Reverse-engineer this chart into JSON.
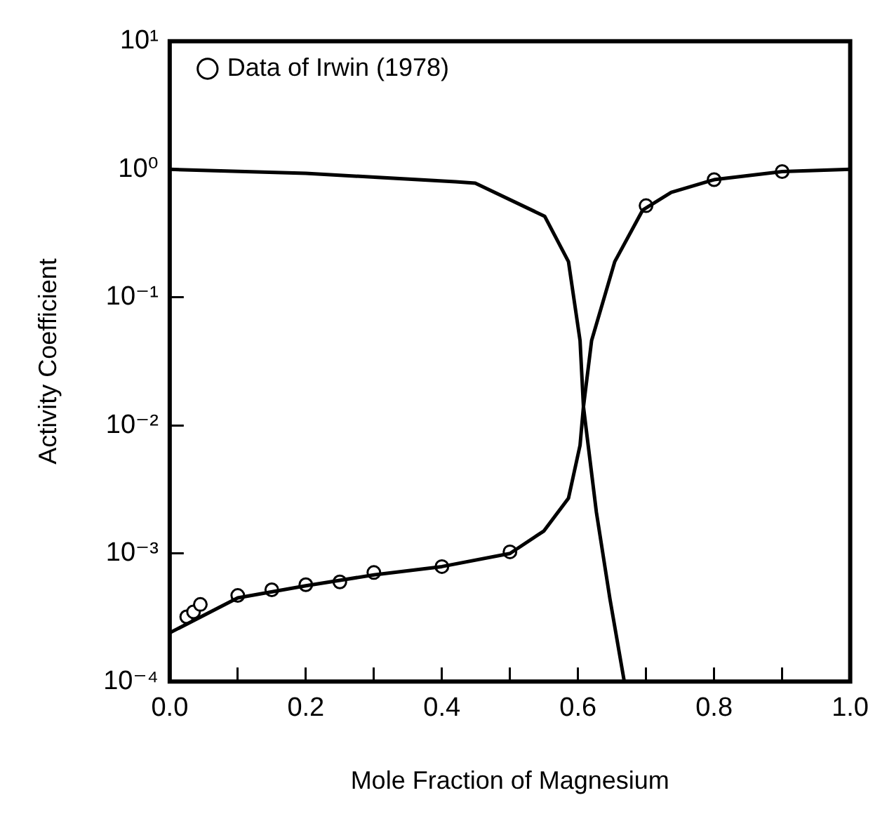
{
  "chart_data": {
    "type": "line",
    "xlabel": "Mole Fraction of Magnesium",
    "ylabel": "Activity Coefficient",
    "log": "y",
    "grid": false,
    "legend": "top left",
    "xlim": [
      0,
      1
    ],
    "xticks": [
      {
        "value": 0,
        "label": "0.0"
      },
      {
        "value": 0.1,
        "label": null
      },
      {
        "value": 0.2,
        "label": "0.2"
      },
      {
        "value": 0.3,
        "label": null
      },
      {
        "value": 0.4,
        "label": "0.4"
      },
      {
        "value": 0.5,
        "label": null
      },
      {
        "value": 0.6,
        "label": "0.6"
      },
      {
        "value": 0.7,
        "label": null
      },
      {
        "value": 0.8,
        "label": "0.8"
      },
      {
        "value": 0.9,
        "label": null
      },
      {
        "value": 1,
        "label": "1.0"
      }
    ],
    "ylim": [
      0.0001,
      10
    ],
    "yticks": [
      {
        "value": 0.0001,
        "label": "10⁻⁴"
      },
      {
        "value": 0.001,
        "label": "10⁻³"
      },
      {
        "value": 0.01,
        "label": "10⁻²"
      },
      {
        "value": 0.1,
        "label": "10⁻¹"
      },
      {
        "value": 1,
        "label": "10⁰"
      },
      {
        "value": 10,
        "label": "10¹"
      }
    ],
    "series": [
      {
        "type": "line",
        "color": "#000000",
        "marker": "none",
        "line_style": "solid",
        "x": [
          0,
          0.1,
          0.2,
          0.3,
          0.4,
          0.5,
          0.55,
          0.586,
          0.603,
          0.608,
          0.62,
          0.654,
          0.695,
          0.737,
          0.8,
          0.9,
          1.0
        ],
        "values": [
          0.00024,
          0.00045,
          0.00056,
          0.00068,
          0.00079,
          0.001,
          0.0015,
          0.0027,
          0.007,
          0.014,
          0.046,
          0.19,
          0.48,
          0.66,
          0.83,
          0.96,
          1.0
        ]
      },
      {
        "type": "line",
        "color": "#000000",
        "marker": "none",
        "line_style": "solid",
        "x": [
          0,
          0.2,
          0.42,
          0.449,
          0.551,
          0.586,
          0.603,
          0.608,
          0.627,
          0.647,
          0.668
        ],
        "values": [
          1.0,
          0.93,
          0.8,
          0.78,
          0.43,
          0.19,
          0.046,
          0.014,
          0.0021,
          0.00044,
          0.0001
        ]
      },
      {
        "type": "scatter",
        "name": "Data of Irwin (1978)",
        "color": "#000000",
        "marker": "circle",
        "x": [
          0.025,
          0.035,
          0.045,
          0.1,
          0.15,
          0.2,
          0.25,
          0.3,
          0.4,
          0.5,
          0.7,
          0.8,
          0.9
        ],
        "values": [
          0.00032,
          0.00035,
          0.0004,
          0.00047,
          0.00052,
          0.00057,
          0.0006,
          0.00071,
          0.00079,
          0.00103,
          0.52,
          0.83,
          0.96
        ]
      }
    ]
  }
}
